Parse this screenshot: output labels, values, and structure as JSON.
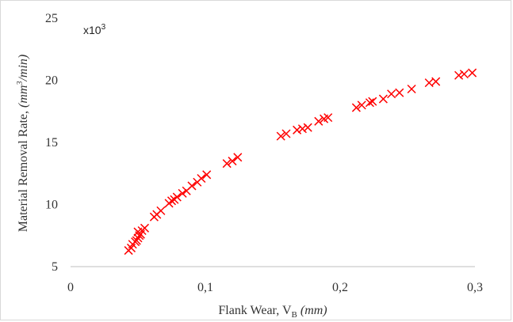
{
  "chart_data": {
    "type": "scatter",
    "title": "",
    "x_multiplier_label": "",
    "y_multiplier_label": {
      "base": "x10",
      "exp": "3"
    },
    "xlabel": {
      "main": "Flank Wear, V",
      "sub": "B",
      "unit": "(mm)"
    },
    "ylabel": {
      "main": "Material Removal Rate, ",
      "unit_pre": "(mm",
      "unit_sup": "3",
      "unit_post": "/min)"
    },
    "xlim": [
      0,
      0.3
    ],
    "ylim": [
      5,
      25
    ],
    "x_ticks": [
      "0",
      "0,1",
      "0,2",
      "0,3"
    ],
    "x_tick_values": [
      0,
      0.1,
      0.2,
      0.3
    ],
    "y_ticks": [
      "5",
      "10",
      "15",
      "20",
      "25"
    ],
    "y_tick_values": [
      5,
      10,
      15,
      20,
      25
    ],
    "grid": false,
    "marker": "x",
    "series_color": "#ff0000",
    "series": [
      {
        "points": [
          [
            0.043,
            6.3
          ],
          [
            0.045,
            6.5
          ],
          [
            0.046,
            6.8
          ],
          [
            0.048,
            7.0
          ],
          [
            0.049,
            7.1
          ],
          [
            0.05,
            7.3
          ],
          [
            0.051,
            7.5
          ],
          [
            0.052,
            7.6
          ],
          [
            0.05,
            7.8
          ],
          [
            0.053,
            7.9
          ],
          [
            0.055,
            8.1
          ],
          [
            0.062,
            9.0
          ],
          [
            0.064,
            9.2
          ],
          [
            0.067,
            9.5
          ],
          [
            0.073,
            10.1
          ],
          [
            0.075,
            10.3
          ],
          [
            0.077,
            10.4
          ],
          [
            0.079,
            10.6
          ],
          [
            0.083,
            10.9
          ],
          [
            0.086,
            11.1
          ],
          [
            0.09,
            11.5
          ],
          [
            0.094,
            11.8
          ],
          [
            0.097,
            12.1
          ],
          [
            0.101,
            12.4
          ],
          [
            0.116,
            13.3
          ],
          [
            0.12,
            13.5
          ],
          [
            0.124,
            13.8
          ],
          [
            0.156,
            15.5
          ],
          [
            0.16,
            15.7
          ],
          [
            0.168,
            16.0
          ],
          [
            0.172,
            16.1
          ],
          [
            0.176,
            16.2
          ],
          [
            0.184,
            16.7
          ],
          [
            0.188,
            16.9
          ],
          [
            0.191,
            17.0
          ],
          [
            0.212,
            17.8
          ],
          [
            0.216,
            18.0
          ],
          [
            0.222,
            18.2
          ],
          [
            0.224,
            18.3
          ],
          [
            0.232,
            18.5
          ],
          [
            0.238,
            18.9
          ],
          [
            0.244,
            19.0
          ],
          [
            0.253,
            19.3
          ],
          [
            0.266,
            19.8
          ],
          [
            0.271,
            19.9
          ],
          [
            0.288,
            20.4
          ],
          [
            0.292,
            20.5
          ],
          [
            0.298,
            20.6
          ]
        ]
      }
    ]
  }
}
